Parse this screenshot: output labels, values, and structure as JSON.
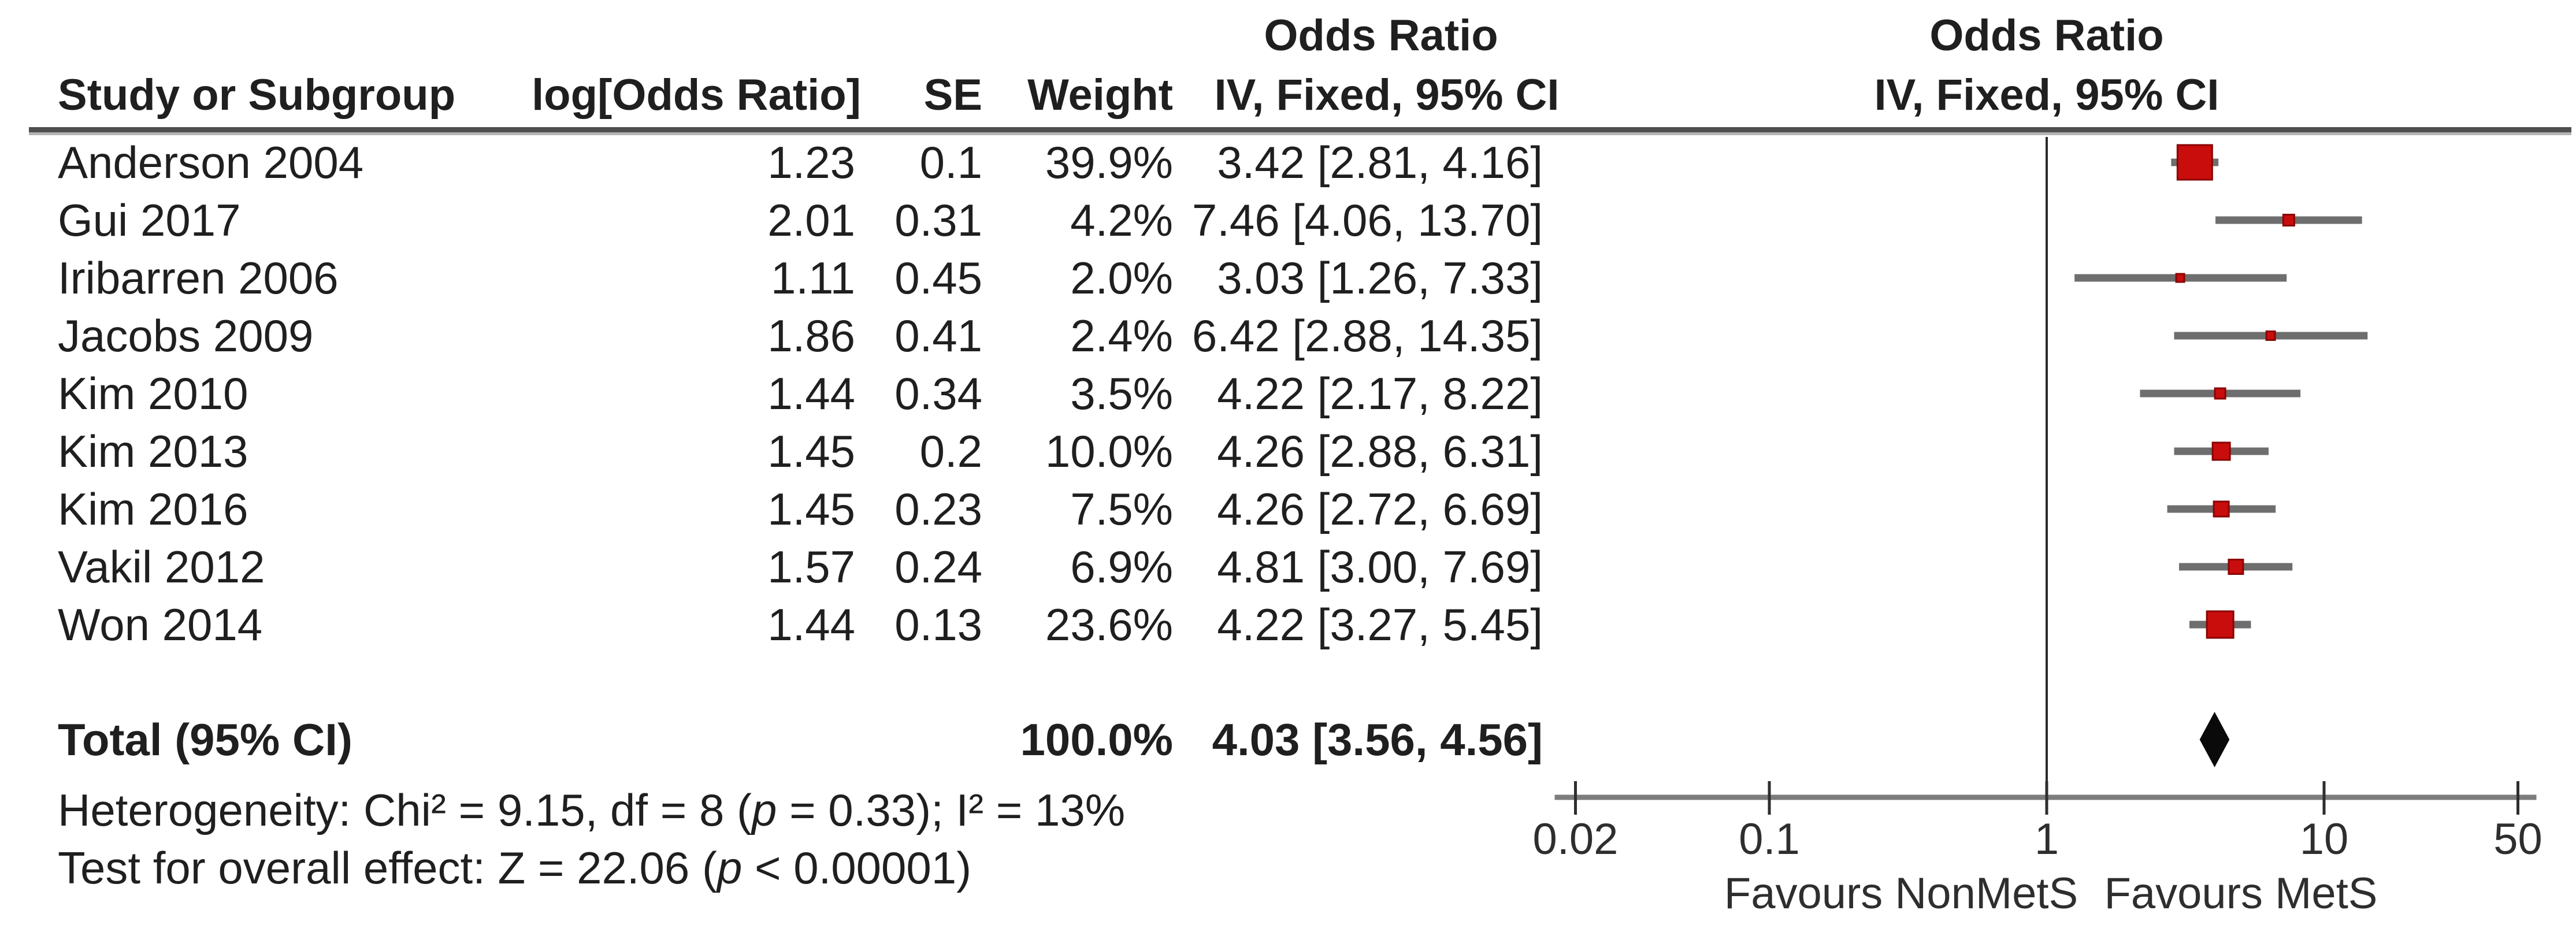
{
  "table": {
    "headers": {
      "study": "Study or Subgroup",
      "log_or": "log[Odds Ratio]",
      "se": "SE",
      "weight": "Weight",
      "stats_group_title": "Odds Ratio",
      "stats_group_subtitle": "IV, Fixed, 95% CI",
      "plot_group_title": "Odds Ratio",
      "plot_group_subtitle": "IV, Fixed, 95% CI"
    },
    "total_row": {
      "label": "Total (95% CI)",
      "weight": "100.0%",
      "ci_text": "4.03 [3.56, 4.56]"
    },
    "footer": {
      "heterogeneity_pre": "Heterogeneity: Chi² = 9.15, df = 8 (",
      "heterogeneity_p": "p",
      "heterogeneity_post": " = 0.33); I² = 13%",
      "effect_pre": "Test for overall effect: Z = 22.06 (",
      "effect_p": "p",
      "effect_post": " < 0.00001)"
    }
  },
  "chart_data": {
    "type": "scatter",
    "subtype": "forest-plot",
    "title": "Odds Ratio",
    "method": "IV, Fixed, 95% CI",
    "x_scale": "log10",
    "xlim": [
      0.02,
      50
    ],
    "null_line": 1,
    "x_ticks": [
      0.02,
      0.1,
      1,
      10,
      50
    ],
    "x_tick_labels": [
      "0.02",
      "0.1",
      "1",
      "10",
      "50"
    ],
    "favours_left": "Favours NonMetS",
    "favours_right": "Favours MetS",
    "studies": [
      {
        "name": "Anderson 2004",
        "log_or": "1.23",
        "se": "0.1",
        "weight": "39.9%",
        "weight_pct": 39.9,
        "or": 3.42,
        "lo": 2.81,
        "hi": 4.16,
        "ci_text": "3.42 [2.81, 4.16]"
      },
      {
        "name": "Gui 2017",
        "log_or": "2.01",
        "se": "0.31",
        "weight": "4.2%",
        "weight_pct": 4.2,
        "or": 7.46,
        "lo": 4.06,
        "hi": 13.7,
        "ci_text": "7.46 [4.06, 13.70]"
      },
      {
        "name": "Iribarren 2006",
        "log_or": "1.11",
        "se": "0.45",
        "weight": "2.0%",
        "weight_pct": 2.0,
        "or": 3.03,
        "lo": 1.26,
        "hi": 7.33,
        "ci_text": "3.03 [1.26, 7.33]"
      },
      {
        "name": "Jacobs 2009",
        "log_or": "1.86",
        "se": "0.41",
        "weight": "2.4%",
        "weight_pct": 2.4,
        "or": 6.42,
        "lo": 2.88,
        "hi": 14.35,
        "ci_text": "6.42 [2.88, 14.35]"
      },
      {
        "name": "Kim 2010",
        "log_or": "1.44",
        "se": "0.34",
        "weight": "3.5%",
        "weight_pct": 3.5,
        "or": 4.22,
        "lo": 2.17,
        "hi": 8.22,
        "ci_text": "4.22 [2.17, 8.22]"
      },
      {
        "name": "Kim 2013",
        "log_or": "1.45",
        "se": "0.2",
        "weight": "10.0%",
        "weight_pct": 10.0,
        "or": 4.26,
        "lo": 2.88,
        "hi": 6.31,
        "ci_text": "4.26 [2.88, 6.31]"
      },
      {
        "name": "Kim 2016",
        "log_or": "1.45",
        "se": "0.23",
        "weight": "7.5%",
        "weight_pct": 7.5,
        "or": 4.26,
        "lo": 2.72,
        "hi": 6.69,
        "ci_text": "4.26 [2.72, 6.69]"
      },
      {
        "name": "Vakil 2012",
        "log_or": "1.57",
        "se": "0.24",
        "weight": "6.9%",
        "weight_pct": 6.9,
        "or": 4.81,
        "lo": 3.0,
        "hi": 7.69,
        "ci_text": "4.81 [3.00, 7.69]"
      },
      {
        "name": "Won 2014",
        "log_or": "1.44",
        "se": "0.13",
        "weight": "23.6%",
        "weight_pct": 23.6,
        "or": 4.22,
        "lo": 3.27,
        "hi": 5.45,
        "ci_text": "4.22 [3.27, 5.45]"
      }
    ],
    "total": {
      "label": "Total (95% CI)",
      "weight_pct": 100.0,
      "or": 4.03,
      "lo": 3.56,
      "hi": 4.56
    },
    "heterogeneity": "Heterogeneity: Chi² = 9.15, df = 8 (p = 0.33); I² = 13%",
    "overall_effect": "Test for overall effect: Z = 22.06 (p < 0.00001)",
    "colors": {
      "square": "#c90d0d",
      "square_border": "#8a0404",
      "ci_line": "#6e6e6e",
      "diamond": "#0a0a0a",
      "axis": "#7d7d7d",
      "tick": "#2e2e2e",
      "text": "#1f1f1f"
    }
  }
}
